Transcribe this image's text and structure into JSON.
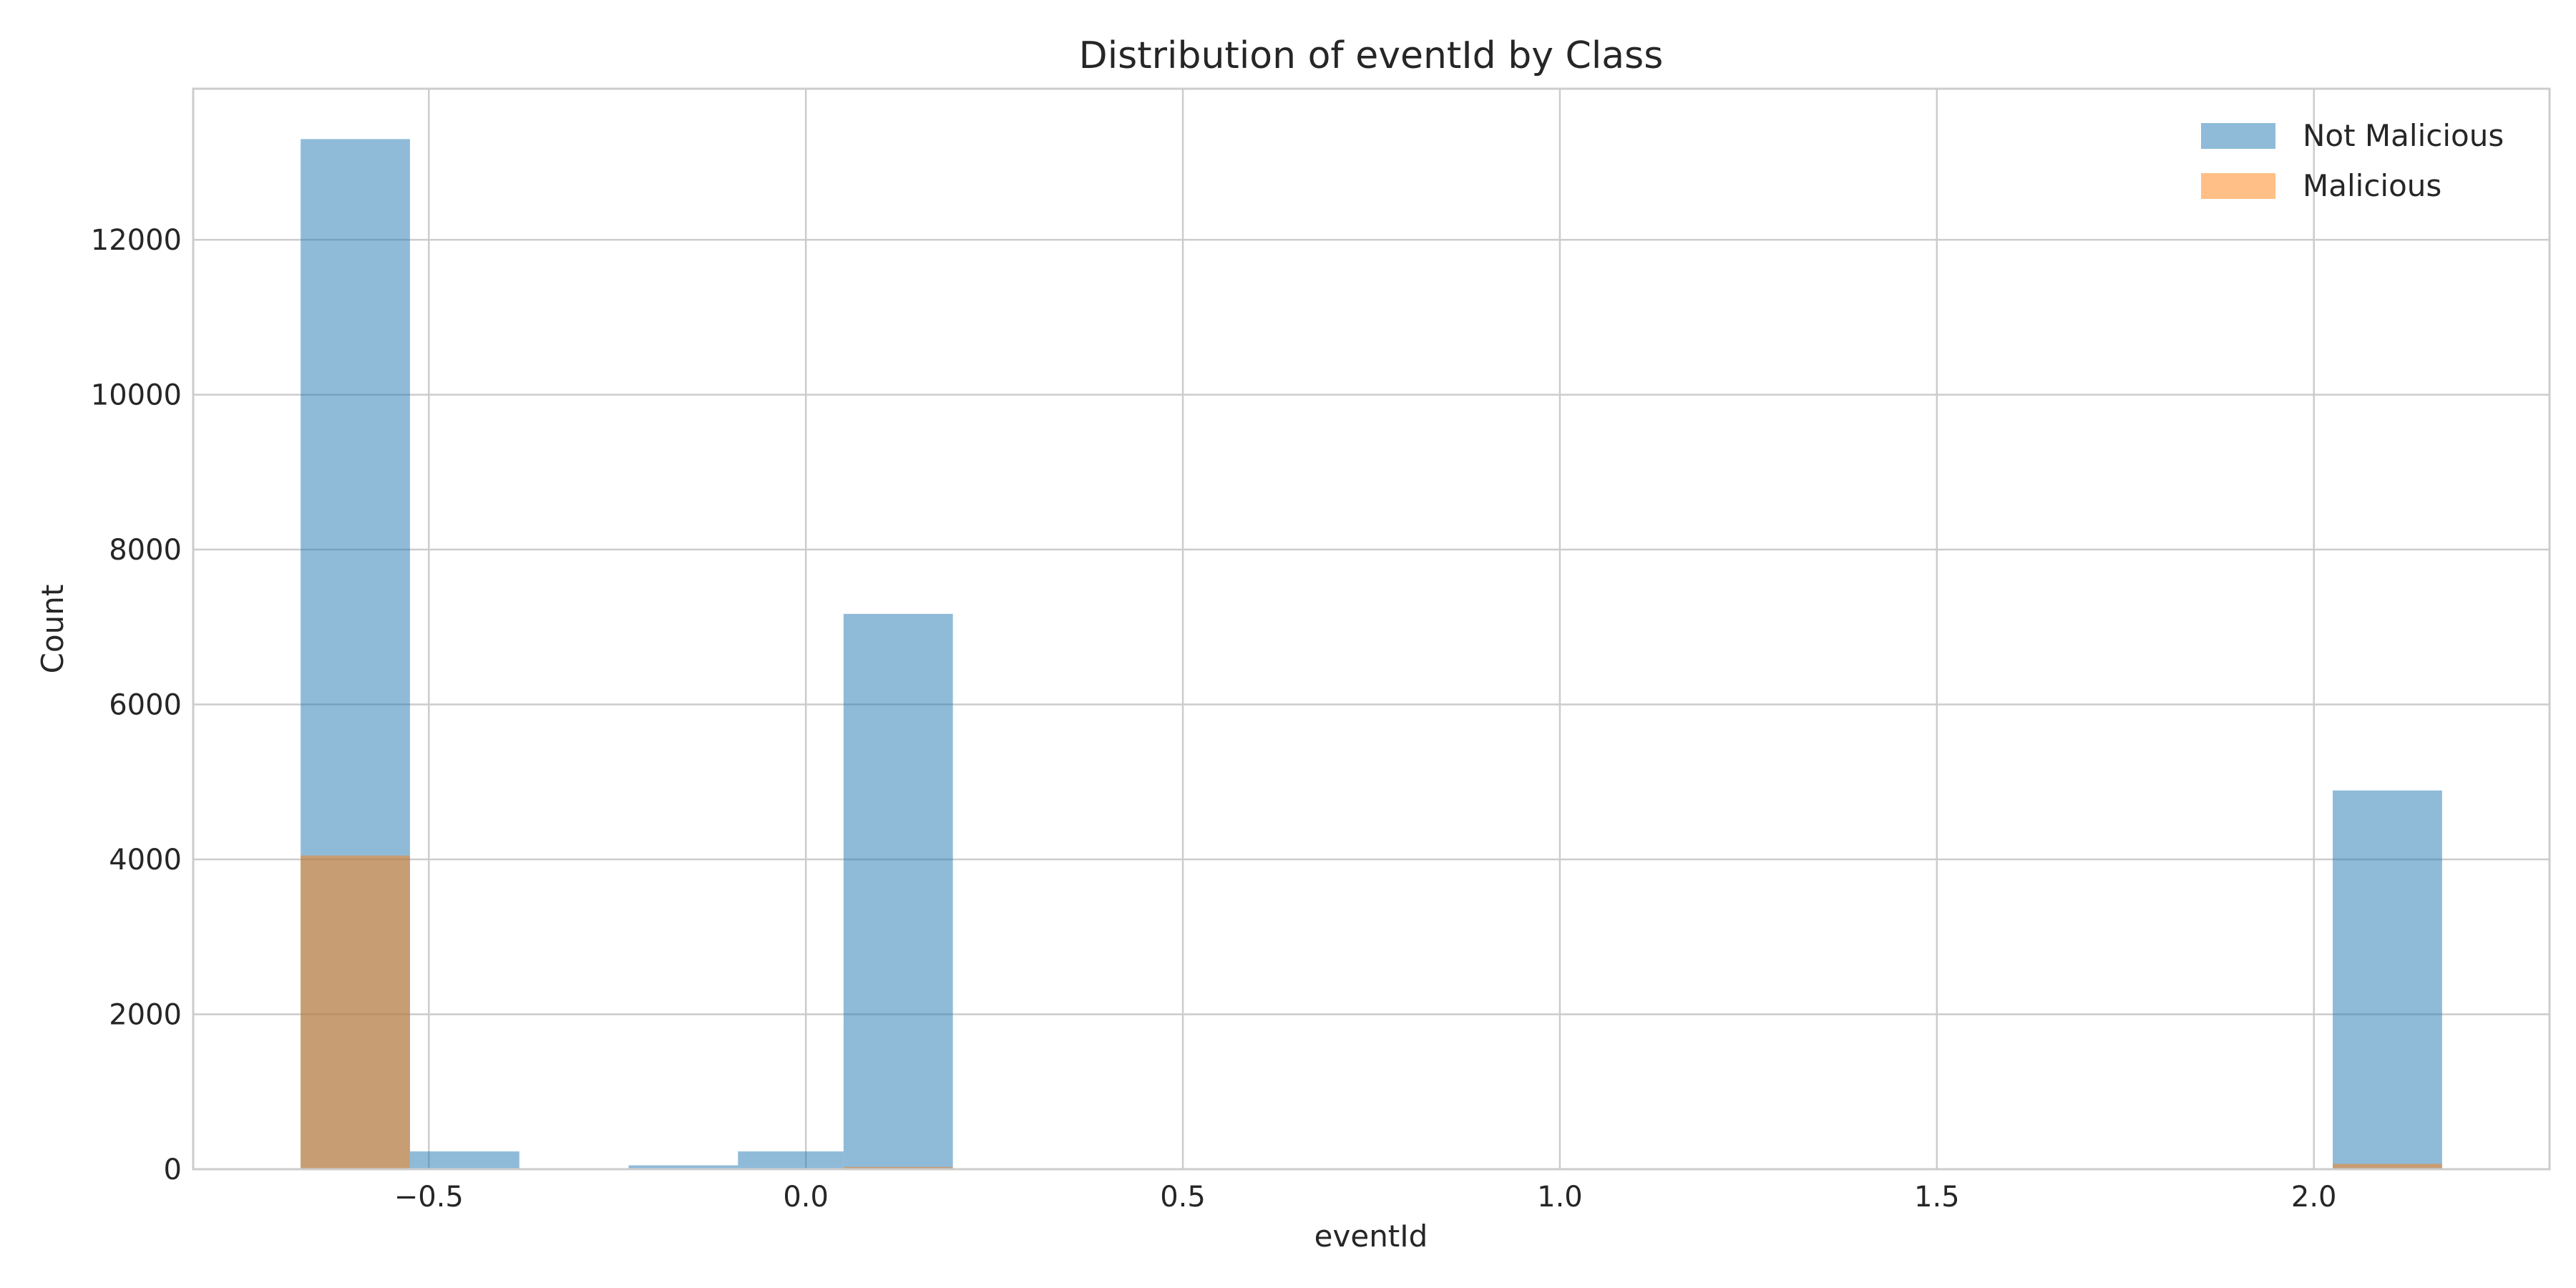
{
  "chart_data": {
    "type": "bar",
    "title": "Distribution of eventId by Class",
    "xlabel": "eventId",
    "ylabel": "Count",
    "xlim": [
      -0.8125,
      2.3125
    ],
    "ylim": [
      0,
      13950
    ],
    "xticks": [
      -0.5,
      0.0,
      0.5,
      1.0,
      1.5,
      2.0
    ],
    "xtick_labels": [
      "−0.5",
      "0.0",
      "0.5",
      "1.0",
      "1.5",
      "2.0"
    ],
    "yticks": [
      0,
      2000,
      4000,
      6000,
      8000,
      10000,
      12000
    ],
    "ytick_labels": [
      "0",
      "2000",
      "4000",
      "6000",
      "8000",
      "10000",
      "12000"
    ],
    "grid": true,
    "legend_position": "top-right",
    "series": [
      {
        "name": "Not Malicious",
        "color": "#1f77b4",
        "opacity": 0.5,
        "bins": [
          {
            "x0": -0.67,
            "x1": -0.525,
            "value": 13300
          },
          {
            "x0": -0.525,
            "x1": -0.38,
            "value": 230
          },
          {
            "x0": -0.235,
            "x1": -0.09,
            "value": 50
          },
          {
            "x0": -0.09,
            "x1": 0.05,
            "value": 230
          },
          {
            "x0": 0.05,
            "x1": 0.195,
            "value": 7170
          },
          {
            "x0": 2.025,
            "x1": 2.17,
            "value": 4890
          }
        ]
      },
      {
        "name": "Malicious",
        "color": "#ff7f0e",
        "opacity": 0.5,
        "bins": [
          {
            "x0": -0.67,
            "x1": -0.525,
            "value": 4050
          },
          {
            "x0": 0.05,
            "x1": 0.195,
            "value": 30
          },
          {
            "x0": 2.025,
            "x1": 2.17,
            "value": 70
          }
        ]
      }
    ]
  }
}
